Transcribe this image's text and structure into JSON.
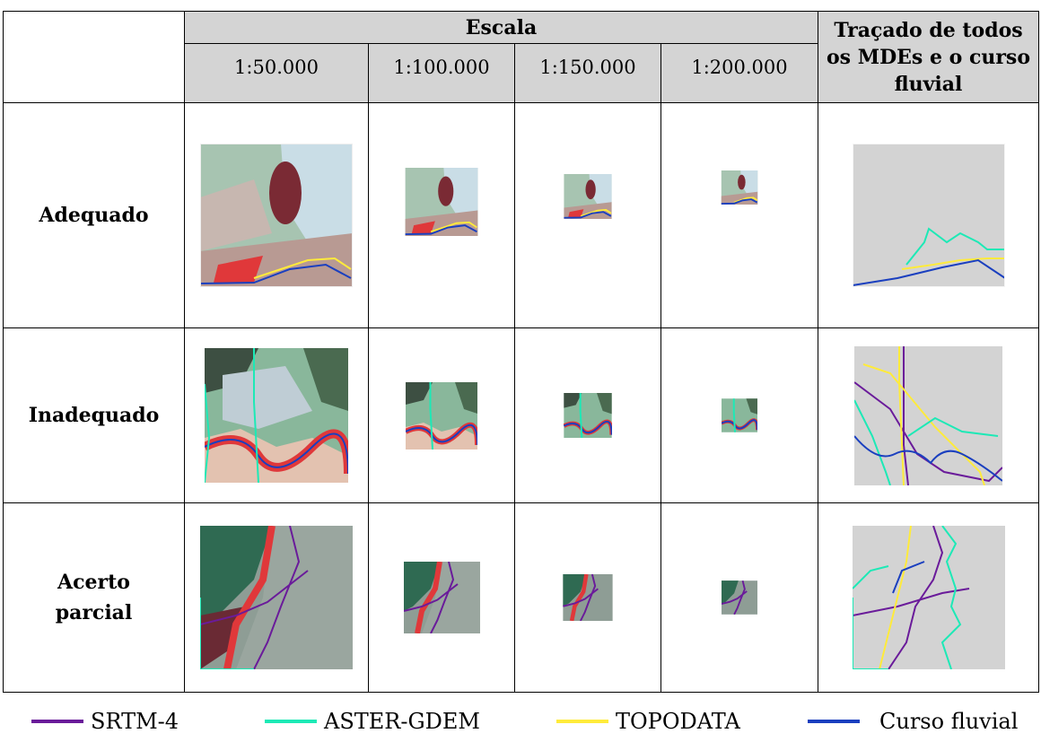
{
  "header": {
    "scale_group_label": "Escala",
    "trace_label": "Traçado de todos os MDEs e o curso fluvial",
    "scales": [
      "1:50.000",
      "1:100.000",
      "1:150.000",
      "1:200.000"
    ]
  },
  "rows": [
    {
      "label": "Adequado",
      "image": "adequado"
    },
    {
      "label": "Inadequado",
      "image": "inadequado"
    },
    {
      "label": "Acerto parcial",
      "image": "acerto-parcial"
    }
  ],
  "legend": [
    {
      "label": "SRTM-4",
      "color": "#6a1b9a"
    },
    {
      "label": "ASTER-GDEM",
      "color": "#1de9b6"
    },
    {
      "label": "TOPODATA",
      "color": "#ffeb3b"
    },
    {
      "label": "Curso fluvial",
      "color": "#1a3fbf"
    }
  ]
}
